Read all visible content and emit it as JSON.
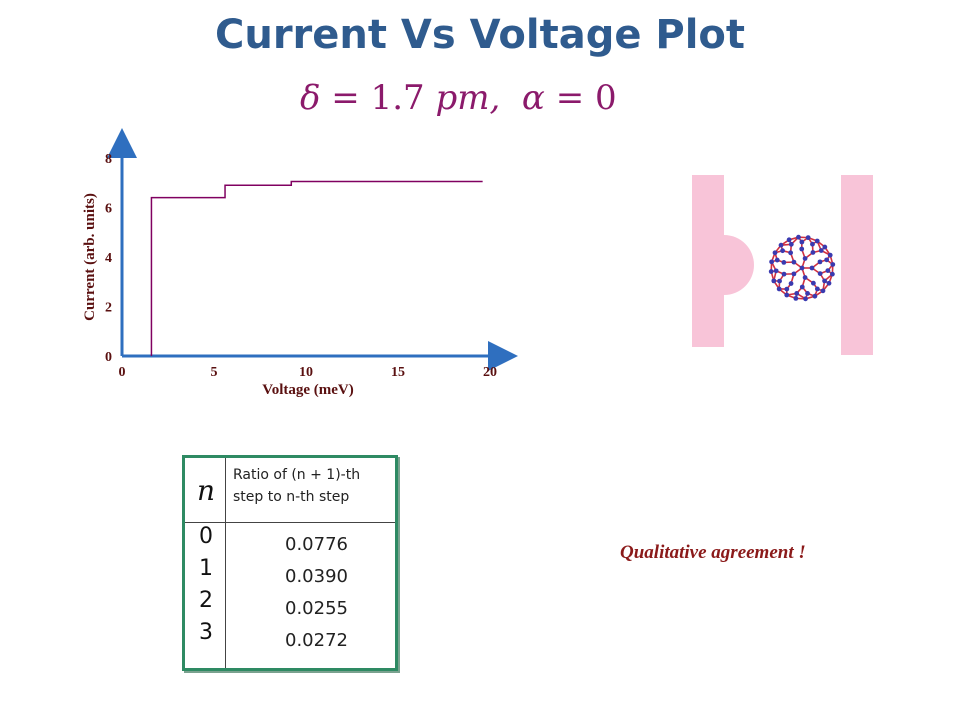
{
  "title": "Current Vs Voltage Plot",
  "subtitle": {
    "delta_symbol": "δ",
    "delta_value": "= 1.7",
    "delta_unit": "pm,",
    "alpha_symbol": "α",
    "alpha_value": "= 0"
  },
  "chart_data": {
    "type": "line",
    "title": "",
    "xlabel": "Voltage (meV)",
    "ylabel": "Current (arb. units)",
    "xlim": [
      0,
      20
    ],
    "ylim": [
      0,
      8
    ],
    "xticks": [
      0,
      5,
      10,
      15,
      20
    ],
    "yticks": [
      0,
      2,
      4,
      6,
      8
    ],
    "grid": false,
    "series": [
      {
        "x": [
          1.6,
          1.6,
          5.6,
          5.6,
          9.2,
          9.2,
          19.6
        ],
        "y": [
          0,
          6.4,
          6.4,
          6.9,
          6.9,
          7.05,
          7.05
        ],
        "color": "#800060"
      }
    ]
  },
  "colors": {
    "axis": "#2f6fbf",
    "electrode": "#f8c4d8",
    "molecule_bond": "#d03040",
    "molecule_atom": "#3a3ab0"
  },
  "table": {
    "n_header": "n",
    "ratio_header_line1": "Ratio of (n + 1)-th",
    "ratio_header_line2": "step to n-th step",
    "rows": [
      {
        "n": "0",
        "ratio": "0.0776"
      },
      {
        "n": "1",
        "ratio": "0.0390"
      },
      {
        "n": "2",
        "ratio": "0.0255"
      },
      {
        "n": "3",
        "ratio": "0.0272"
      }
    ]
  },
  "note": "Qualitative agreement !"
}
